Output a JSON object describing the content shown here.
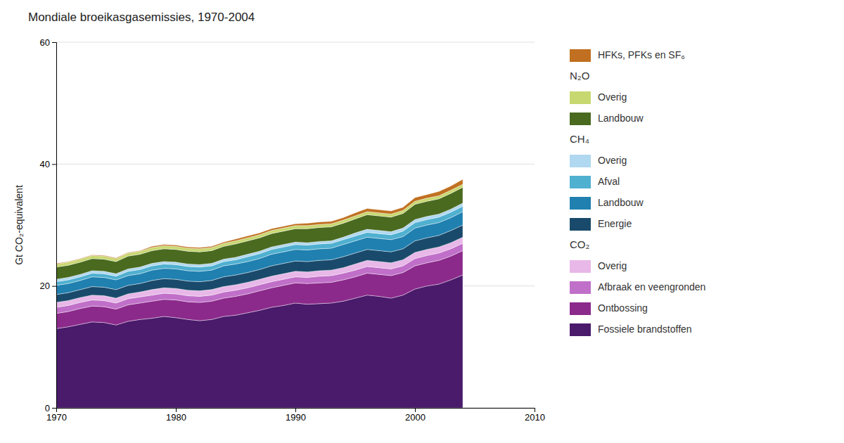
{
  "chart_data": {
    "type": "area",
    "stacked": true,
    "title": "Mondiale broeikasgasemissies, 1970-2004",
    "y_label": "Gt CO₂-equivalent",
    "x": [
      1970,
      1971,
      1972,
      1973,
      1974,
      1975,
      1976,
      1977,
      1978,
      1979,
      1980,
      1981,
      1982,
      1983,
      1984,
      1985,
      1986,
      1987,
      1988,
      1989,
      1990,
      1991,
      1992,
      1993,
      1994,
      1995,
      1996,
      1997,
      1998,
      1999,
      2000,
      2001,
      2002,
      2003,
      2004
    ],
    "xlim": [
      1970,
      2010
    ],
    "xticks": [
      1970,
      1980,
      1990,
      2000,
      2010
    ],
    "ylim": [
      0,
      60
    ],
    "yticks": [
      0,
      20,
      40,
      60
    ],
    "grid": true,
    "legend": "right",
    "series": [
      {
        "name": "Fossiele brandstoffen",
        "group": "CO₂",
        "color": "#4a1a6b",
        "values": [
          13.0,
          13.3,
          13.7,
          14.1,
          14.0,
          13.6,
          14.2,
          14.5,
          14.7,
          15.0,
          14.8,
          14.5,
          14.3,
          14.5,
          15.0,
          15.2,
          15.6,
          16.0,
          16.5,
          16.8,
          17.2,
          17.0,
          17.1,
          17.2,
          17.5,
          18.0,
          18.5,
          18.3,
          18.0,
          18.5,
          19.5,
          20.0,
          20.3,
          21.0,
          21.8
        ]
      },
      {
        "name": "Ontbossing",
        "group": "CO₂",
        "color": "#8b2a8b",
        "values": [
          2.5,
          2.5,
          2.6,
          2.6,
          2.6,
          2.6,
          2.7,
          2.7,
          2.8,
          2.8,
          2.9,
          2.9,
          3.0,
          3.0,
          3.0,
          3.1,
          3.1,
          3.2,
          3.2,
          3.3,
          3.3,
          3.4,
          3.4,
          3.4,
          3.5,
          3.5,
          3.6,
          3.6,
          3.7,
          3.7,
          3.8,
          3.8,
          3.9,
          3.9,
          4.0
        ]
      },
      {
        "name": "Afbraak en veengronden",
        "group": "CO₂",
        "color": "#c070c8",
        "values": [
          1.0,
          1.0,
          1.0,
          1.0,
          1.0,
          1.0,
          1.0,
          1.0,
          1.0,
          1.0,
          1.0,
          1.0,
          1.0,
          1.0,
          1.0,
          1.0,
          1.0,
          1.0,
          1.0,
          1.0,
          1.0,
          1.0,
          1.1,
          1.1,
          1.1,
          1.1,
          1.1,
          1.1,
          1.1,
          1.1,
          1.2,
          1.2,
          1.2,
          1.2,
          1.2
        ]
      },
      {
        "name": "Overig",
        "group": "CO₂",
        "color": "#e8b8e8",
        "values": [
          0.8,
          0.8,
          0.8,
          0.8,
          0.8,
          0.8,
          0.8,
          0.8,
          0.9,
          0.9,
          0.9,
          0.9,
          0.9,
          0.9,
          0.9,
          0.9,
          0.9,
          0.9,
          0.9,
          0.9,
          0.9,
          0.9,
          0.9,
          0.9,
          0.9,
          1.0,
          1.0,
          1.0,
          1.0,
          1.0,
          1.0,
          1.0,
          1.0,
          1.0,
          1.0
        ]
      },
      {
        "name": "Energie",
        "group": "CH₄",
        "color": "#1a4a6b",
        "values": [
          1.3,
          1.3,
          1.3,
          1.4,
          1.4,
          1.4,
          1.4,
          1.4,
          1.5,
          1.5,
          1.5,
          1.5,
          1.5,
          1.5,
          1.6,
          1.6,
          1.6,
          1.6,
          1.7,
          1.7,
          1.7,
          1.7,
          1.7,
          1.7,
          1.8,
          1.8,
          1.8,
          1.8,
          1.8,
          1.8,
          1.9,
          1.9,
          1.9,
          2.0,
          2.0
        ]
      },
      {
        "name": "Landbouw",
        "group": "CH₄",
        "color": "#2080b0",
        "values": [
          1.5,
          1.5,
          1.5,
          1.6,
          1.6,
          1.6,
          1.6,
          1.6,
          1.7,
          1.7,
          1.7,
          1.7,
          1.7,
          1.7,
          1.8,
          1.8,
          1.8,
          1.8,
          1.9,
          1.9,
          1.9,
          1.9,
          1.9,
          1.9,
          2.0,
          2.0,
          2.0,
          2.0,
          2.0,
          2.0,
          2.1,
          2.1,
          2.1,
          2.1,
          2.2
        ]
      },
      {
        "name": "Afval",
        "group": "CH₄",
        "color": "#50b0d0",
        "values": [
          0.6,
          0.6,
          0.6,
          0.6,
          0.6,
          0.6,
          0.7,
          0.7,
          0.7,
          0.7,
          0.7,
          0.7,
          0.7,
          0.7,
          0.7,
          0.7,
          0.8,
          0.8,
          0.8,
          0.8,
          0.8,
          0.8,
          0.8,
          0.8,
          0.8,
          0.8,
          0.8,
          0.8,
          0.8,
          0.9,
          0.9,
          0.9,
          0.9,
          0.9,
          0.9
        ]
      },
      {
        "name": "Overig",
        "group": "CH₄",
        "color": "#b0d8f0",
        "values": [
          0.4,
          0.4,
          0.4,
          0.4,
          0.4,
          0.4,
          0.4,
          0.4,
          0.4,
          0.4,
          0.4,
          0.4,
          0.4,
          0.4,
          0.4,
          0.4,
          0.4,
          0.4,
          0.4,
          0.4,
          0.4,
          0.4,
          0.4,
          0.4,
          0.4,
          0.5,
          0.5,
          0.5,
          0.5,
          0.5,
          0.5,
          0.5,
          0.5,
          0.5,
          0.5
        ]
      },
      {
        "name": "Landbouw",
        "group": "N₂O",
        "color": "#4a6a20",
        "values": [
          2.0,
          2.0,
          2.0,
          2.0,
          2.0,
          2.0,
          2.1,
          2.1,
          2.1,
          2.1,
          2.1,
          2.1,
          2.1,
          2.1,
          2.1,
          2.2,
          2.2,
          2.2,
          2.2,
          2.2,
          2.2,
          2.3,
          2.3,
          2.3,
          2.3,
          2.3,
          2.4,
          2.4,
          2.4,
          2.4,
          2.5,
          2.5,
          2.5,
          2.6,
          2.6
        ]
      },
      {
        "name": "Overig",
        "group": "N₂O",
        "color": "#c8d870",
        "values": [
          0.5,
          0.5,
          0.5,
          0.5,
          0.5,
          0.5,
          0.5,
          0.5,
          0.5,
          0.5,
          0.5,
          0.5,
          0.5,
          0.5,
          0.5,
          0.5,
          0.5,
          0.5,
          0.5,
          0.5,
          0.5,
          0.5,
          0.5,
          0.5,
          0.5,
          0.5,
          0.5,
          0.5,
          0.5,
          0.5,
          0.5,
          0.5,
          0.5,
          0.5,
          0.5
        ]
      },
      {
        "name": "HFKs, PFKs en SF₆",
        "color": "#c07020",
        "values": [
          0.1,
          0.1,
          0.1,
          0.1,
          0.1,
          0.1,
          0.1,
          0.1,
          0.2,
          0.2,
          0.2,
          0.2,
          0.2,
          0.2,
          0.2,
          0.3,
          0.3,
          0.3,
          0.3,
          0.3,
          0.3,
          0.4,
          0.4,
          0.4,
          0.4,
          0.5,
          0.5,
          0.5,
          0.5,
          0.5,
          0.6,
          0.6,
          0.7,
          0.7,
          0.8
        ]
      }
    ]
  }
}
